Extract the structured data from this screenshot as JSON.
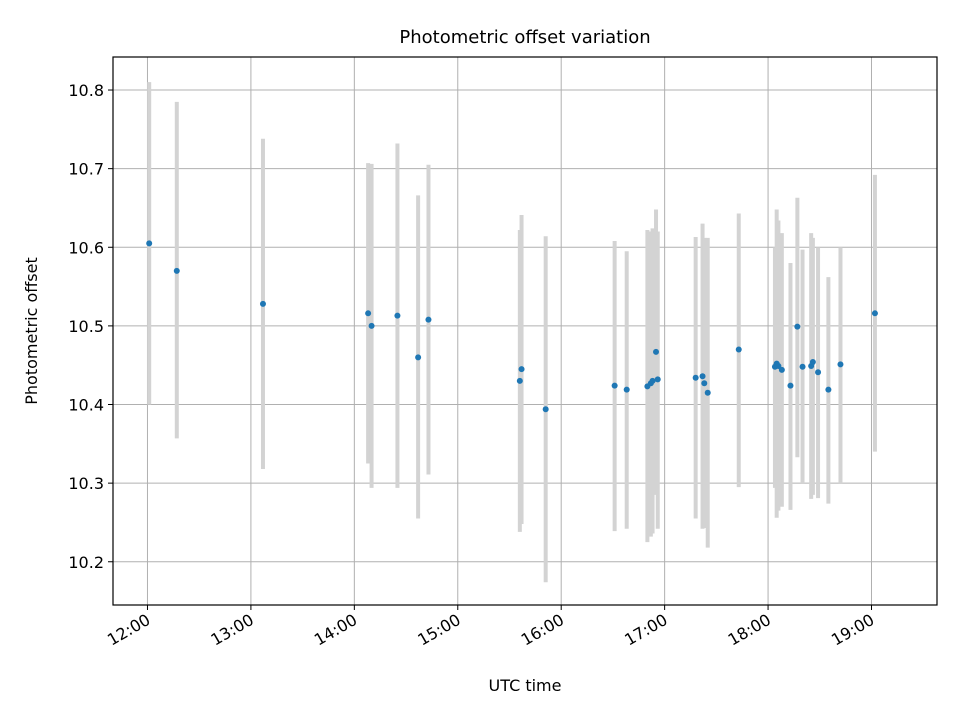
{
  "chart_data": {
    "type": "scatter",
    "title": "Photometric offset variation",
    "xlabel": "UTC time",
    "ylabel": "Photometric offset",
    "x_axis": {
      "kind": "time",
      "range": [
        "11:40",
        "19:38"
      ],
      "ticks": [
        "12:00",
        "13:00",
        "14:00",
        "15:00",
        "16:00",
        "17:00",
        "18:00",
        "19:00"
      ]
    },
    "y_axis": {
      "range": [
        10.145,
        10.842
      ],
      "ticks": [
        "10.2",
        "10.3",
        "10.4",
        "10.5",
        "10.6",
        "10.7",
        "10.8"
      ]
    },
    "grid": true,
    "colors": {
      "point": "#1f77b4",
      "errorbar": "#d3d3d3",
      "grid": "#b0b0b0"
    },
    "points": [
      {
        "time": "12:01",
        "y": 10.605,
        "ylo": 10.4,
        "yhi": 10.81
      },
      {
        "time": "12:17",
        "y": 10.57,
        "ylo": 10.357,
        "yhi": 10.785
      },
      {
        "time": "13:07",
        "y": 10.528,
        "ylo": 10.318,
        "yhi": 10.738
      },
      {
        "time": "14:08",
        "y": 10.516,
        "ylo": 10.325,
        "yhi": 10.707
      },
      {
        "time": "14:10",
        "y": 10.5,
        "ylo": 10.294,
        "yhi": 10.706
      },
      {
        "time": "14:25",
        "y": 10.513,
        "ylo": 10.294,
        "yhi": 10.732
      },
      {
        "time": "14:37",
        "y": 10.46,
        "ylo": 10.255,
        "yhi": 10.666
      },
      {
        "time": "14:43",
        "y": 10.508,
        "ylo": 10.311,
        "yhi": 10.705
      },
      {
        "time": "15:36",
        "y": 10.43,
        "ylo": 10.238,
        "yhi": 10.622
      },
      {
        "time": "15:37",
        "y": 10.445,
        "ylo": 10.248,
        "yhi": 10.641
      },
      {
        "time": "15:51",
        "y": 10.394,
        "ylo": 10.174,
        "yhi": 10.614
      },
      {
        "time": "16:31",
        "y": 10.424,
        "ylo": 10.239,
        "yhi": 10.608
      },
      {
        "time": "16:38",
        "y": 10.419,
        "ylo": 10.242,
        "yhi": 10.595
      },
      {
        "time": "16:50",
        "y": 10.423,
        "ylo": 10.225,
        "yhi": 10.622
      },
      {
        "time": "16:52",
        "y": 10.427,
        "ylo": 10.232,
        "yhi": 10.62
      },
      {
        "time": "16:53",
        "y": 10.43,
        "ylo": 10.236,
        "yhi": 10.624
      },
      {
        "time": "16:55",
        "y": 10.467,
        "ylo": 10.285,
        "yhi": 10.648
      },
      {
        "time": "16:56",
        "y": 10.432,
        "ylo": 10.242,
        "yhi": 10.62
      },
      {
        "time": "17:18",
        "y": 10.434,
        "ylo": 10.255,
        "yhi": 10.613
      },
      {
        "time": "17:22",
        "y": 10.436,
        "ylo": 10.242,
        "yhi": 10.63
      },
      {
        "time": "17:23",
        "y": 10.427,
        "ylo": 10.243,
        "yhi": 10.612
      },
      {
        "time": "17:25",
        "y": 10.415,
        "ylo": 10.218,
        "yhi": 10.612
      },
      {
        "time": "17:43",
        "y": 10.47,
        "ylo": 10.295,
        "yhi": 10.643
      },
      {
        "time": "18:04",
        "y": 10.448,
        "ylo": 10.294,
        "yhi": 10.6
      },
      {
        "time": "18:05",
        "y": 10.452,
        "ylo": 10.256,
        "yhi": 10.648
      },
      {
        "time": "18:06",
        "y": 10.449,
        "ylo": 10.265,
        "yhi": 10.634
      },
      {
        "time": "18:08",
        "y": 10.444,
        "ylo": 10.27,
        "yhi": 10.618
      },
      {
        "time": "18:13",
        "y": 10.424,
        "ylo": 10.266,
        "yhi": 10.58
      },
      {
        "time": "18:17",
        "y": 10.499,
        "ylo": 10.333,
        "yhi": 10.663
      },
      {
        "time": "18:20",
        "y": 10.448,
        "ylo": 10.3,
        "yhi": 10.597
      },
      {
        "time": "18:25",
        "y": 10.449,
        "ylo": 10.28,
        "yhi": 10.618
      },
      {
        "time": "18:26",
        "y": 10.454,
        "ylo": 10.285,
        "yhi": 10.612
      },
      {
        "time": "18:29",
        "y": 10.441,
        "ylo": 10.281,
        "yhi": 10.6
      },
      {
        "time": "18:35",
        "y": 10.419,
        "ylo": 10.274,
        "yhi": 10.562
      },
      {
        "time": "18:42",
        "y": 10.451,
        "ylo": 10.3,
        "yhi": 10.6
      },
      {
        "time": "19:02",
        "y": 10.516,
        "ylo": 10.34,
        "yhi": 10.692
      }
    ]
  }
}
